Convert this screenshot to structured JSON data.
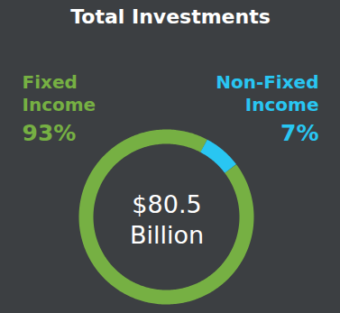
{
  "chart_data": {
    "type": "pie",
    "title": "Total Investments",
    "categories": [
      "Fixed Income",
      "Non-Fixed Income"
    ],
    "values": [
      93,
      7
    ],
    "value_labels": [
      "93%",
      "7%"
    ],
    "colors": [
      "#76b043",
      "#29c6f2"
    ],
    "data_labels": true,
    "annotations": [
      "$80.5 Billion"
    ]
  }
}
